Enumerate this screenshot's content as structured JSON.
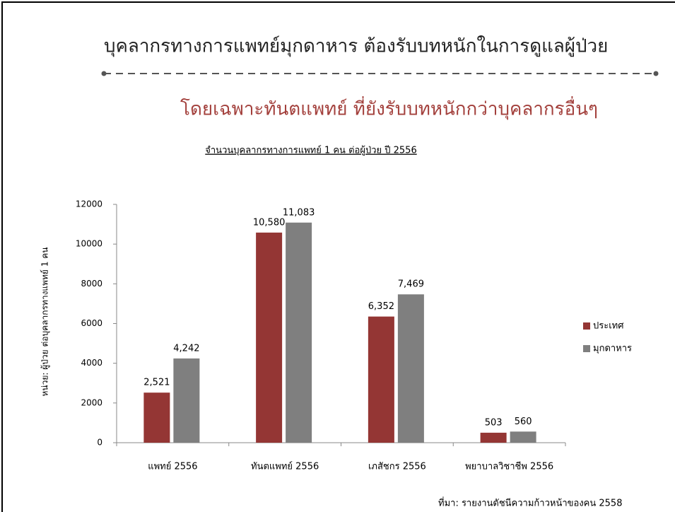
{
  "header": {
    "title": "บุคลากรทางการแพทย์มุกดาหาร  ต้องรับบทหนักในการดูแลผู้ป่วย",
    "subtitle": "โดยเฉพาะทันตแพทย์  ที่ยังรับบทหนักกว่าบุคลากรอื่นๆ"
  },
  "chart_data": {
    "type": "bar",
    "title": "จำนวนบุคลากรทางการแพทย์ 1 คน ต่อผู้ป่วย   ปี 2556",
    "y_label": "หน่วย: ผู้ป่วย ต่อบุคลากรทางแพทย์ 1 คน",
    "categories": [
      "แพทย์ 2556",
      "ทันตแพทย์ 2556",
      "เภสัชกร 2556",
      "พยาบาลวิชาชีพ 2556"
    ],
    "series": [
      {
        "name": "ประเทศ",
        "color": "#943634",
        "values": [
          2521,
          10580,
          6352,
          503
        ],
        "value_labels": [
          "2,521",
          "10,580",
          "6,352",
          "503"
        ]
      },
      {
        "name": "มุกดาหาร",
        "color": "#7f7f7f",
        "values": [
          4242,
          11083,
          7469,
          560
        ],
        "value_labels": [
          "4,242",
          "11,083",
          "7,469",
          "560"
        ]
      }
    ],
    "ylim": [
      0,
      12000
    ],
    "yticks": [
      0,
      2000,
      4000,
      6000,
      8000,
      10000,
      12000
    ],
    "legend": "right"
  },
  "source": "ที่มา: รายงานดัชนีความก้าวหน้าของคน 2558"
}
